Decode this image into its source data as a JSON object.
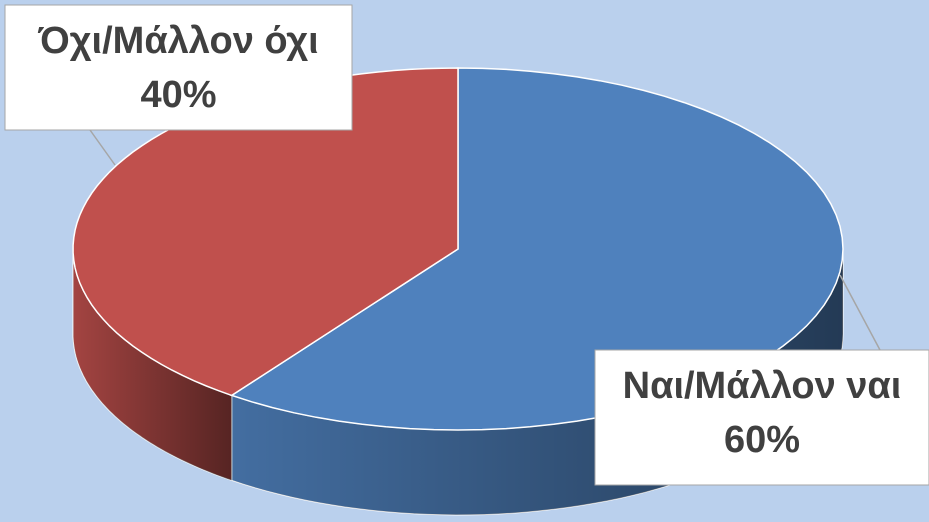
{
  "chart_data": {
    "type": "pie",
    "categories": [
      "Ναι/Μάλλον ναι",
      "Όχι/Μάλλον όχι"
    ],
    "values": [
      60,
      40
    ],
    "value_labels": [
      "60%",
      "40%"
    ],
    "colors": [
      "#4f81bd",
      "#c0504d"
    ]
  }
}
